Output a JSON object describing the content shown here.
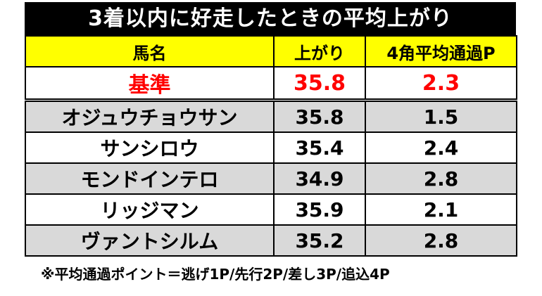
{
  "title": "3着以内に好走したときの平均上がり",
  "table": {
    "headers": [
      "馬名",
      "上がり",
      "4角平均通過P"
    ],
    "base": {
      "name": "基準",
      "agari": "35.8",
      "pass": "2.3"
    },
    "rows": [
      {
        "name": "オジュウチョウサン",
        "agari": "35.8",
        "pass": "1.5"
      },
      {
        "name": "サンシロウ",
        "agari": "35.4",
        "pass": "2.4"
      },
      {
        "name": "モンドインテロ",
        "agari": "34.9",
        "pass": "2.8"
      },
      {
        "name": "リッジマン",
        "agari": "35.9",
        "pass": "2.1"
      },
      {
        "name": "ヴァントシルム",
        "agari": "35.2",
        "pass": "2.8"
      }
    ]
  },
  "colors": {
    "title_bg": "#000000",
    "header_bg": "#ffff00",
    "base_text": "#ff0000",
    "alt_row_bg": "#d9d9d9"
  },
  "note": "※平均通過ポイント＝逃げ1P/先行2P/差し3P/追込4P"
}
